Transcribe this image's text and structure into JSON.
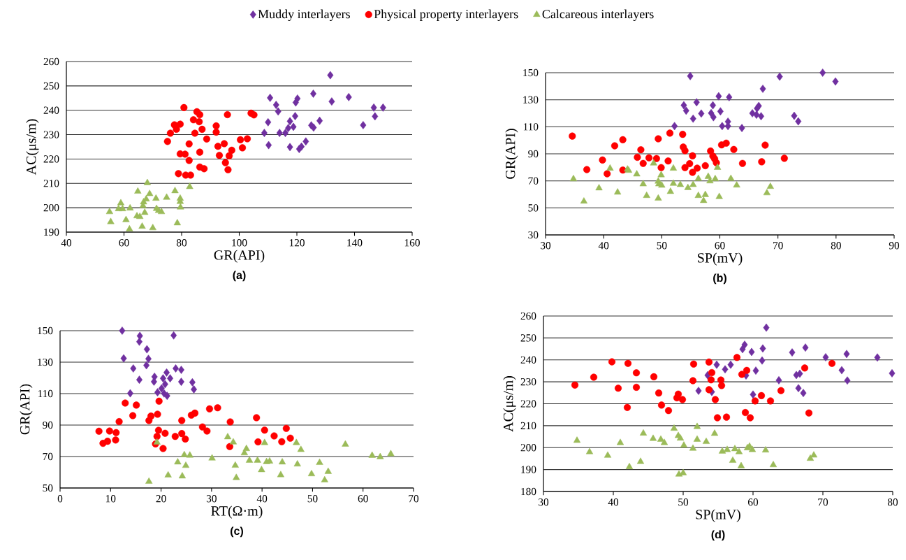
{
  "chart_data": [
    {
      "type": "scatter",
      "title": "(a)",
      "xlabel": "GR(API)",
      "ylabel": "AC(μs/m)",
      "xlim": [
        40,
        160
      ],
      "ylim": [
        190,
        260
      ],
      "xticks": [
        40,
        60,
        80,
        100,
        120,
        140,
        160
      ],
      "yticks": [
        190,
        200,
        210,
        220,
        230,
        240,
        250,
        260
      ],
      "grid": "y",
      "legend": "top",
      "series": [
        {
          "name": "Muddy interlayers",
          "color": "#7030a0",
          "marker": "diamond",
          "x": [
            131.6,
            110.7,
            112.8,
            113.5,
            110.0,
            108.7,
            110.2,
            114.0,
            116.0,
            117.0,
            117.6,
            118.8,
            119.4,
            119.6,
            120.2,
            117.6,
            120.8,
            121.6,
            123.1,
            125.7,
            125.0,
            125.8,
            127.9,
            132.1,
            138.0,
            143.0,
            146.7,
            147.1,
            149.9
          ],
          "values": [
            254.4,
            245.1,
            242.2,
            239.5,
            235.1,
            230.7,
            225.7,
            230.7,
            230.7,
            232.7,
            235.5,
            233.2,
            237.6,
            243.2,
            244.8,
            224.9,
            224.1,
            225.1,
            227.2,
            246.8,
            233.8,
            232.9,
            235.7,
            243.6,
            245.4,
            233.9,
            241.1,
            237.5,
            241.1
          ]
        },
        {
          "name": "Physical property interlayers",
          "color": "#ff0000",
          "marker": "circle",
          "x": [
            80.8,
            85.3,
            86.3,
            95.9,
            104.1,
            105.1,
            84.1,
            86.1,
            77.5,
            79.5,
            78.2,
            92.0,
            87.1,
            76.1,
            84.6,
            92.0,
            88.7,
            75.1,
            82.6,
            100.4,
            102.8,
            92.6,
            94.8,
            101.1,
            97.4,
            79.5,
            81.2,
            86.3,
            93.1,
            96.5,
            82.6,
            95.2,
            86.3,
            87.8,
            96.1,
            78.9,
            81.4,
            83.1
          ],
          "values": [
            241.1,
            239.4,
            238.2,
            238.2,
            238.8,
            238.1,
            236.1,
            235.3,
            234.0,
            234.3,
            232.2,
            233.6,
            232.2,
            230.6,
            230.6,
            231.0,
            228.2,
            227.2,
            226.2,
            227.9,
            228.3,
            225.2,
            226.3,
            224.6,
            223.6,
            222.1,
            222.0,
            222.8,
            221.5,
            221.3,
            219.4,
            218.5,
            216.7,
            216.0,
            215.6,
            214.0,
            213.4,
            213.4
          ]
        },
        {
          "name": "Calcareous interlayers",
          "color": "#9bbb59",
          "marker": "triangle",
          "x": [
            68.1,
            82.8,
            64.8,
            77.7,
            68.9,
            74.8,
            71.1,
            79.5,
            67.7,
            66.8,
            79.5,
            58.9,
            66.6,
            79.6,
            58.1,
            59.5,
            62.1,
            71.3,
            72.0,
            73.0,
            55.0,
            67.2,
            64.5,
            65.5,
            60.7,
            55.4,
            78.5,
            66.3,
            70.0,
            61.9
          ],
          "values": [
            210.2,
            208.6,
            206.7,
            206.9,
            205.7,
            204.2,
            203.8,
            203.8,
            203.5,
            202.3,
            202.5,
            201.9,
            200.8,
            200.2,
            199.5,
            199.5,
            199.8,
            199.6,
            198.8,
            198.3,
            198.3,
            198.0,
            196.6,
            196.3,
            195.0,
            194.2,
            193.7,
            192.3,
            191.7,
            191.2
          ]
        }
      ]
    },
    {
      "type": "scatter",
      "title": "(b)",
      "xlabel": "SP(mV)",
      "ylabel": "GR(API)",
      "xlim": [
        30,
        90
      ],
      "ylim": [
        30,
        150
      ],
      "xticks": [
        30,
        40,
        50,
        60,
        70,
        80,
        90
      ],
      "yticks": [
        30,
        50,
        70,
        90,
        110,
        130,
        150
      ],
      "grid": "y",
      "series": [
        {
          "color": "#7030a0",
          "marker": "diamond",
          "x": [
            77.7,
            79.9,
            54.9,
            70.3,
            59.8,
            61.6,
            67.4,
            53.8,
            54.2,
            56.0,
            58.8,
            55.4,
            56.8,
            58.5,
            58.9,
            60.1,
            60.4,
            61.4,
            61.4,
            63.8,
            52.2,
            65.6,
            66.3,
            66.4,
            66.7,
            67.1,
            72.8,
            73.5
          ],
          "values": [
            150.0,
            143.5,
            147.5,
            147.1,
            132.6,
            131.9,
            138.1,
            125.9,
            121.9,
            128.1,
            125.9,
            116.0,
            119.8,
            120.1,
            117.1,
            121.4,
            110.5,
            113.8,
            110.5,
            109.1,
            110.5,
            120.0,
            118.9,
            123.6,
            125.4,
            117.8,
            118.1,
            114.0
          ]
        },
        {
          "color": "#ff0000",
          "marker": "circle",
          "x": [
            34.6,
            37.1,
            39.8,
            40.6,
            41.9,
            43.3,
            43.3,
            45.8,
            46.4,
            46.8,
            47.8,
            49.1,
            49.4,
            49.9,
            51.1,
            51.4,
            53.6,
            53.7,
            54.0,
            54.0,
            54.8,
            55.3,
            55.3,
            56.1,
            57.5,
            58.4,
            58.8,
            59.1,
            59.4,
            60.3,
            61.1,
            62.4,
            63.9,
            67.2,
            67.8,
            71.1
          ],
          "values": [
            103.1,
            78.3,
            85.4,
            75.2,
            95.9,
            100.4,
            78.0,
            87.4,
            93.0,
            82.9,
            87.0,
            86.5,
            101.1,
            79.8,
            84.7,
            105.3,
            104.4,
            95.0,
            92.3,
            79.8,
            82.7,
            88.5,
            76.3,
            79.4,
            81.2,
            92.1,
            88.3,
            86.3,
            83.4,
            96.6,
            97.9,
            93.2,
            82.9,
            84.1,
            96.4,
            86.7
          ]
        },
        {
          "color": "#9bbb59",
          "marker": "triangle",
          "x": [
            34.8,
            36.6,
            39.2,
            41.1,
            42.4,
            44.1,
            44.3,
            45.7,
            46.8,
            47.4,
            48.6,
            49.4,
            49.4,
            49.5,
            49.9,
            50.0,
            51.5,
            52.0,
            52.0,
            53.2,
            54.5,
            55.4,
            56.3,
            56.3,
            57.2,
            57.5,
            58.0,
            58.3,
            59.2,
            59.6,
            59.9,
            61.9,
            62.9,
            68.1,
            68.7
          ],
          "values": [
            71.4,
            54.8,
            64.6,
            79.2,
            61.5,
            78.5,
            77.6,
            74.9,
            67.6,
            59.0,
            83.0,
            57.0,
            69.6,
            67.6,
            74.3,
            66.6,
            62.0,
            79.2,
            68.0,
            67.1,
            64.8,
            67.1,
            71.6,
            59.0,
            55.3,
            59.7,
            73.1,
            69.8,
            71.4,
            79.8,
            58.2,
            71.6,
            66.7,
            61.0,
            65.7
          ]
        }
      ]
    },
    {
      "type": "scatter",
      "title": "(c)",
      "xlabel": "RT(Ω·m)",
      "ylabel": "GR(API)",
      "xlim": [
        0,
        70
      ],
      "ylim": [
        50,
        150
      ],
      "xticks": [
        0,
        10,
        20,
        30,
        40,
        50,
        60,
        70
      ],
      "yticks": [
        50,
        70,
        90,
        110,
        130,
        150
      ],
      "grid": "y",
      "series": [
        {
          "color": "#7030a0",
          "marker": "diamond",
          "x": [
            12.3,
            15.8,
            15.7,
            22.5,
            17.2,
            12.6,
            17.5,
            17.1,
            14.5,
            22.9,
            24.0,
            15.7,
            18.7,
            18.6,
            21.1,
            20.4,
            21.8,
            20.8,
            20.1,
            24.0,
            26.2,
            26.5,
            13.9,
            19.3,
            20.6,
            21.2
          ],
          "values": [
            150.0,
            146.7,
            143.0,
            147.0,
            138.2,
            132.4,
            132.1,
            128.0,
            126.0,
            126.0,
            125.1,
            118.8,
            120.7,
            117.6,
            123.4,
            119.7,
            119.7,
            116.0,
            113.3,
            117.5,
            117.2,
            112.7,
            110.2,
            110.8,
            110.1,
            108.6
          ]
        },
        {
          "color": "#ff0000",
          "marker": "circle",
          "x": [
            12.9,
            15.1,
            19.6,
            14.4,
            18.0,
            17.6,
            19.3,
            11.7,
            24.1,
            26.0,
            26.7,
            29.6,
            31.2,
            33.7,
            38.9,
            7.7,
            9.8,
            11.1,
            11.0,
            9.4,
            8.5,
            19.5,
            19.2,
            20.8,
            18.9,
            20.4,
            22.8,
            24.1,
            24.8,
            28.2,
            29.1,
            33.6,
            40.5,
            39.2,
            42.4,
            43.9,
            44.8,
            45.6
          ],
          "values": [
            104.0,
            102.7,
            105.2,
            96.0,
            95.7,
            92.9,
            96.9,
            92.2,
            92.9,
            96.3,
            97.6,
            100.3,
            101.0,
            92.0,
            94.7,
            86.1,
            86.2,
            85.2,
            80.5,
            79.7,
            78.4,
            86.7,
            82.8,
            84.8,
            78.0,
            75.1,
            82.8,
            84.6,
            81.1,
            88.8,
            86.2,
            76.3,
            86.8,
            79.3,
            83.1,
            79.4,
            87.9,
            81.7
          ]
        },
        {
          "color": "#9bbb59",
          "marker": "triangle",
          "x": [
            19.2,
            17.6,
            21.4,
            23.3,
            24.2,
            24.6,
            24.9,
            25.7,
            30.1,
            33.2,
            34.3,
            34.7,
            34.9,
            36.5,
            36.9,
            37.5,
            39.1,
            39.9,
            40.5,
            40.9,
            41.5,
            44.0,
            43.7,
            46.8,
            47.0,
            47.7,
            49.8,
            51.4,
            52.4,
            53.1,
            56.5,
            61.8,
            63.4,
            65.5
          ],
          "values": [
            79.0,
            54.1,
            58.1,
            66.4,
            57.5,
            71.0,
            64.2,
            70.7,
            68.9,
            82.4,
            79.1,
            64.3,
            56.5,
            72.2,
            74.9,
            67.5,
            67.5,
            61.5,
            78.7,
            66.6,
            66.9,
            66.4,
            58.3,
            78.7,
            65.1,
            74.3,
            58.9,
            66.1,
            55.0,
            60.4,
            77.7,
            70.6,
            69.7,
            71.6
          ]
        }
      ]
    },
    {
      "type": "scatter",
      "title": "(d)",
      "xlabel": "SP(mV)",
      "ylabel": "AC(μs/m)",
      "xlim": [
        30,
        80
      ],
      "ylim": [
        180,
        260
      ],
      "xticks": [
        30,
        40,
        50,
        60,
        70,
        80
      ],
      "yticks": [
        180,
        190,
        200,
        210,
        220,
        230,
        240,
        250,
        260
      ],
      "grid": "y",
      "series": [
        {
          "color": "#7030a0",
          "marker": "diamond",
          "x": [
            61.9,
            58.5,
            58.8,
            59.8,
            61.4,
            61.3,
            65.6,
            67.5,
            70.4,
            73.4,
            77.8,
            79.9,
            72.7,
            73.5,
            66.2,
            66.7,
            66.5,
            67.2,
            63.7,
            60.4,
            60.0,
            59.0,
            56.8,
            56.0,
            54.8,
            53.5,
            54.1,
            52.2
          ],
          "values": [
            254.7,
            244.9,
            246.9,
            243.6,
            245.2,
            239.7,
            243.4,
            245.6,
            241.2,
            242.7,
            241.1,
            233.9,
            235.3,
            230.6,
            233.1,
            233.7,
            227.1,
            224.9,
            230.7,
            235.1,
            224.2,
            232.9,
            237.8,
            235.7,
            237.8,
            233.0,
            225.4,
            225.9
          ]
        },
        {
          "color": "#ff0000",
          "marker": "circle",
          "x": [
            34.5,
            37.2,
            39.8,
            40.7,
            42.0,
            42.1,
            43.3,
            43.3,
            45.8,
            46.5,
            46.9,
            47.9,
            49.1,
            49.3,
            49.9,
            51.4,
            51.5,
            53.7,
            53.7,
            54.0,
            54.1,
            54.6,
            54.9,
            55.4,
            55.5,
            56.2,
            57.7,
            58.4,
            59.1,
            58.9,
            59.6,
            60.3,
            61.2,
            62.5,
            64.0,
            67.4,
            68.0,
            71.3
          ],
          "values": [
            228.5,
            232.1,
            239.1,
            227.1,
            218.3,
            238.4,
            234.1,
            227.5,
            232.3,
            224.9,
            219.4,
            216.9,
            222.7,
            224.4,
            221.9,
            230.5,
            238.1,
            239.0,
            226.4,
            230.9,
            234.2,
            221.9,
            213.6,
            230.8,
            228.3,
            213.9,
            241.1,
            233.4,
            235.2,
            216.0,
            213.6,
            221.3,
            223.7,
            221.3,
            226.0,
            236.3,
            215.8,
            238.4
          ]
        },
        {
          "color": "#9bbb59",
          "marker": "triangle",
          "x": [
            34.8,
            36.6,
            39.2,
            41.0,
            42.3,
            43.9,
            44.3,
            45.7,
            46.8,
            47.3,
            48.7,
            49.3,
            49.6,
            49.4,
            50.0,
            50.1,
            51.4,
            52.0,
            52.0,
            53.3,
            54.5,
            55.6,
            56.3,
            57.1,
            57.4,
            58.0,
            58.3,
            59.2,
            59.5,
            59.9,
            61.8,
            62.9,
            68.2,
            68.7
          ],
          "values": [
            203.2,
            198.0,
            196.4,
            202.2,
            191.2,
            193.6,
            206.5,
            204.1,
            203.7,
            202.2,
            208.7,
            205.4,
            204.2,
            187.8,
            188.4,
            201.0,
            199.6,
            209.5,
            203.7,
            202.7,
            206.4,
            198.3,
            199.0,
            194.1,
            199.4,
            198.0,
            191.6,
            199.8,
            200.5,
            199.0,
            198.8,
            192.1,
            195.0,
            196.5
          ]
        }
      ]
    }
  ]
}
